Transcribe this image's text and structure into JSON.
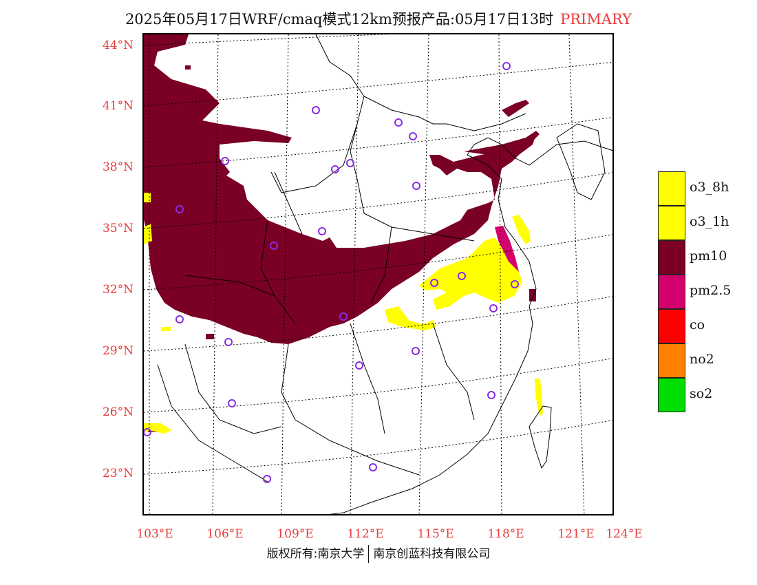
{
  "title": {
    "text": "2025年05月17日WRF/cmaq模式12km预报产品:05月17日13时",
    "tag": "PRIMARY"
  },
  "map": {
    "lat_labels": [
      "44°N",
      "41°N",
      "38°N",
      "35°N",
      "32°N",
      "29°N",
      "26°N",
      "23°N"
    ],
    "lon_labels": [
      "103°E",
      "106°E",
      "109°E",
      "112°E",
      "115°E",
      "118°E",
      "121°E",
      "124°E"
    ],
    "label_color": "#e83a3a",
    "station_marker_color": "#8a2be2"
  },
  "legend": {
    "items": [
      {
        "label": "o3_8h",
        "color": "#ffff00"
      },
      {
        "label": "o3_1h",
        "color": "#ffff00"
      },
      {
        "label": "pm10",
        "color": "#7a0025"
      },
      {
        "label": "pm2.5",
        "color": "#d4006e"
      },
      {
        "label": "co",
        "color": "#ff0000"
      },
      {
        "label": "no2",
        "color": "#ff8000"
      },
      {
        "label": "so2",
        "color": "#00dd00"
      }
    ]
  },
  "copyright": {
    "left": "版权所有:南京大学",
    "right": "南京创蓝科技有限公司"
  }
}
